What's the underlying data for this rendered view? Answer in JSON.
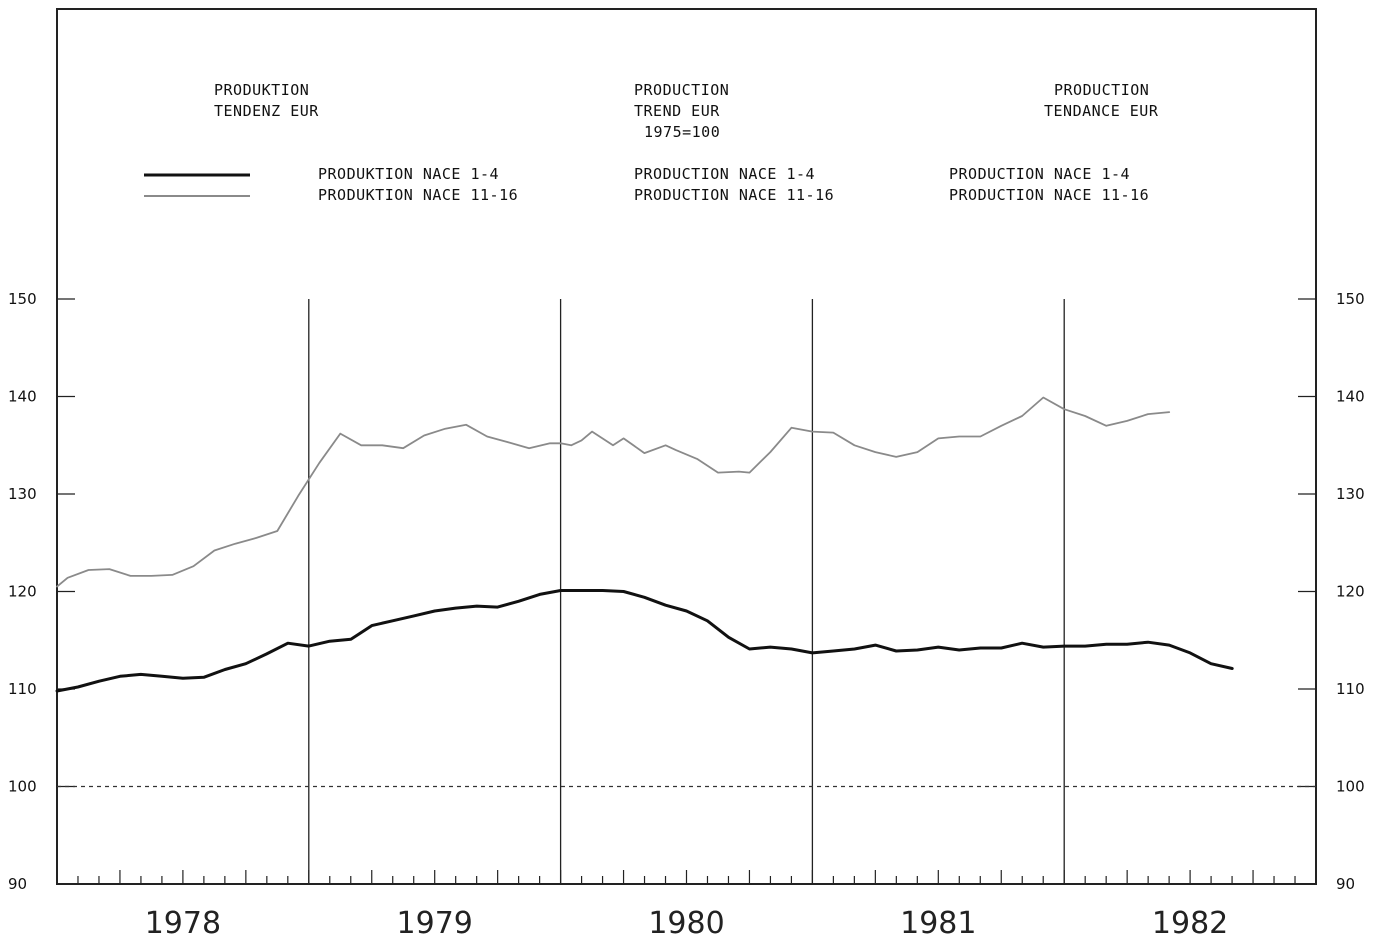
{
  "header": {
    "de": [
      "PRODUKTION",
      "TENDENZ EUR"
    ],
    "en": [
      "PRODUCTION",
      "TREND EUR",
      "1975=100"
    ],
    "fr": [
      "PRODUCTION",
      "TENDANCE EUR"
    ]
  },
  "legend": {
    "de": [
      "PRODUKTION NACE 1-4",
      "PRODUKTION NACE 11-16"
    ],
    "en": [
      "PRODUCTION NACE 1-4",
      "PRODUCTION NACE 11-16"
    ],
    "fr": [
      "PRODUCTION NACE 1-4",
      "PRODUCTION NACE 11-16"
    ]
  },
  "colors": {
    "series_1_4": "#111111",
    "series_11_16": "#8a8a8a",
    "reference_line": "#333333"
  },
  "chart_data": {
    "type": "line",
    "title": "",
    "x_unit": "year",
    "xlim": [
      1977.5,
      1982.5
    ],
    "ylim": [
      90,
      150
    ],
    "yticks": [
      90,
      100,
      110,
      120,
      130,
      140,
      150
    ],
    "x_category_labels": [
      "1978",
      "1979",
      "1980",
      "1981",
      "1982"
    ],
    "grid": "vertical lines at year boundaries",
    "reference_line": {
      "y": 100,
      "style": "dotted"
    },
    "legend_position": "top-left",
    "series": [
      {
        "name": "PRODUKTION NACE 1-4",
        "x": [
          1977.5,
          1977.583,
          1977.667,
          1977.75,
          1977.833,
          1977.917,
          1978.0,
          1978.083,
          1978.167,
          1978.25,
          1978.333,
          1978.417,
          1978.5,
          1978.583,
          1978.667,
          1978.75,
          1978.833,
          1978.917,
          1979.0,
          1979.083,
          1979.167,
          1979.25,
          1979.333,
          1979.417,
          1979.5,
          1979.583,
          1979.667,
          1979.75,
          1979.833,
          1979.917,
          1980.0,
          1980.083,
          1980.167,
          1980.25,
          1980.333,
          1980.417,
          1980.5,
          1980.583,
          1980.667,
          1980.75,
          1980.833,
          1980.917,
          1981.0,
          1981.083,
          1981.167,
          1981.25,
          1981.333,
          1981.417,
          1981.5,
          1981.583,
          1981.667,
          1981.75,
          1981.833,
          1981.917,
          1982.0,
          1982.083,
          1982.167
        ],
        "y": [
          109.8,
          110.2,
          110.8,
          111.3,
          111.5,
          111.3,
          111.1,
          111.2,
          112.0,
          112.6,
          113.6,
          114.7,
          114.4,
          114.9,
          115.1,
          116.5,
          117.0,
          117.5,
          118.0,
          118.3,
          118.5,
          118.4,
          119.0,
          119.7,
          120.1,
          120.1,
          120.1,
          120.0,
          119.4,
          118.6,
          118.0,
          117.0,
          115.3,
          114.1,
          114.3,
          114.1,
          113.7,
          113.9,
          114.1,
          114.5,
          113.9,
          114.0,
          114.3,
          114.0,
          114.2,
          114.2,
          114.7,
          114.3,
          114.4,
          114.4,
          114.6,
          114.6,
          114.8,
          114.5,
          113.7,
          112.6,
          112.1
        ]
      },
      {
        "name": "PRODUKTION NACE 11-16",
        "x": [
          1977.5,
          1977.542,
          1977.625,
          1977.708,
          1977.792,
          1977.875,
          1977.958,
          1978.042,
          1978.125,
          1978.208,
          1978.292,
          1978.375,
          1978.458,
          1978.542,
          1978.625,
          1978.708,
          1978.792,
          1978.875,
          1978.958,
          1979.042,
          1979.125,
          1979.208,
          1979.292,
          1979.375,
          1979.458,
          1979.5,
          1979.542,
          1979.583,
          1979.625,
          1979.708,
          1979.75,
          1979.833,
          1979.917,
          1979.958,
          1980.042,
          1980.125,
          1980.208,
          1980.25,
          1980.333,
          1980.417,
          1980.5,
          1980.583,
          1980.667,
          1980.75,
          1980.833,
          1980.917,
          1981.0,
          1981.083,
          1981.167,
          1981.25,
          1981.333,
          1981.417,
          1981.5,
          1981.583,
          1981.667,
          1981.75,
          1981.833,
          1981.917
        ],
        "y": [
          120.5,
          121.4,
          122.2,
          122.3,
          121.6,
          121.6,
          121.7,
          122.6,
          124.2,
          124.9,
          125.5,
          126.2,
          129.8,
          133.2,
          136.2,
          135.0,
          135.0,
          134.7,
          136.0,
          136.7,
          137.1,
          135.9,
          135.3,
          134.7,
          135.2,
          135.2,
          135.0,
          135.5,
          136.4,
          135.0,
          135.7,
          134.2,
          135.0,
          134.5,
          133.6,
          132.2,
          132.3,
          132.2,
          134.3,
          136.8,
          136.4,
          136.3,
          135.0,
          134.3,
          133.8,
          134.3,
          135.7,
          135.9,
          135.9,
          137.0,
          138.0,
          139.9,
          138.7,
          138.0,
          137.0,
          137.5,
          138.2,
          138.4
        ]
      }
    ]
  }
}
